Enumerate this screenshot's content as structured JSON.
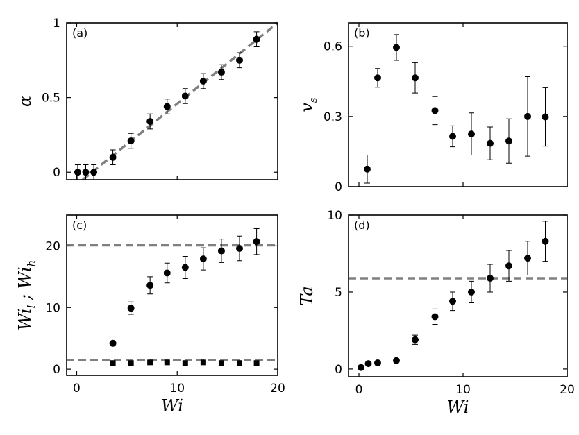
{
  "chart_data": [
    {
      "panel": "a",
      "type": "scatter",
      "label": "(a)",
      "xlabel": "",
      "ylabel": "α",
      "xlim": [
        -1,
        20
      ],
      "ylim": [
        -0.05,
        1
      ],
      "xticks": [
        0,
        10,
        20
      ],
      "xticklabels": [
        "0",
        "10",
        "20"
      ],
      "yticks": [
        0,
        0.5,
        1
      ],
      "yticklabels": [
        "0",
        "0.5",
        "1"
      ],
      "show_xticklabels": false,
      "series": [
        {
          "marker": "circle",
          "x": [
            0.1,
            0.9,
            1.7,
            3.6,
            5.4,
            7.3,
            9.0,
            10.8,
            12.6,
            14.4,
            16.2,
            17.9
          ],
          "y": [
            0.0,
            0.0,
            0.0,
            0.1,
            0.21,
            0.34,
            0.44,
            0.51,
            0.61,
            0.67,
            0.75,
            0.89
          ],
          "err": [
            0.05,
            0.05,
            0.05,
            0.05,
            0.05,
            0.05,
            0.05,
            0.05,
            0.05,
            0.05,
            0.05,
            0.05
          ]
        }
      ],
      "lines": [
        {
          "style": "dashed",
          "color": "#808080",
          "x": [
            0.6,
            20
          ],
          "y": [
            -0.05,
            1.0
          ]
        }
      ]
    },
    {
      "panel": "b",
      "type": "scatter",
      "label": "(b)",
      "xlabel": "",
      "ylabel": "v_s",
      "ylabel_main": "v",
      "ylabel_sub": "s",
      "xlim": [
        -1,
        20
      ],
      "ylim": [
        0,
        0.7
      ],
      "xticks": [
        0,
        10,
        20
      ],
      "xticklabels": [
        "0",
        "10",
        "20"
      ],
      "yticks": [
        0,
        0.3,
        0.6
      ],
      "yticklabels": [
        "0",
        "0.3",
        "0.6"
      ],
      "show_xticklabels": false,
      "series": [
        {
          "marker": "circle",
          "x": [
            0.8,
            1.8,
            3.6,
            5.4,
            7.3,
            9.0,
            10.8,
            12.6,
            14.4,
            16.2,
            17.9
          ],
          "y": [
            0.075,
            0.465,
            0.595,
            0.465,
            0.325,
            0.215,
            0.225,
            0.185,
            0.195,
            0.3,
            0.298
          ],
          "err": [
            0.06,
            0.04,
            0.055,
            0.065,
            0.06,
            0.045,
            0.09,
            0.07,
            0.095,
            0.17,
            0.125
          ]
        }
      ],
      "lines": []
    },
    {
      "panel": "c",
      "type": "scatter",
      "label": "(c)",
      "xlabel": "Wi",
      "ylabel": "Wi_l ; Wi_h",
      "xlim": [
        -1,
        20
      ],
      "ylim": [
        -1,
        25
      ],
      "xticks": [
        0,
        10,
        20
      ],
      "xticklabels": [
        "0",
        "10",
        "20"
      ],
      "yticks": [
        0,
        10,
        20
      ],
      "yticklabels": [
        "0",
        "10",
        "20"
      ],
      "show_xticklabels": true,
      "series": [
        {
          "name": "",
          "marker": "circle",
          "x": [
            3.6,
            5.4,
            7.3,
            9.0,
            10.8,
            12.6,
            14.4,
            16.2,
            17.9
          ],
          "y": [
            4.2,
            9.9,
            13.6,
            15.6,
            16.5,
            17.9,
            19.2,
            19.6,
            20.7
          ],
          "err": [
            0,
            1.0,
            1.4,
            1.6,
            1.8,
            1.8,
            1.9,
            2.0,
            2.1
          ]
        },
        {
          "name": "",
          "marker": "square",
          "x": [
            3.6,
            5.4,
            7.3,
            9.0,
            10.8,
            12.6,
            14.4,
            16.2,
            17.9
          ],
          "y": [
            1.0,
            1.0,
            1.1,
            1.1,
            1.0,
            1.1,
            1.0,
            1.0,
            1.0
          ],
          "err": [
            0,
            0,
            0,
            0,
            0,
            0,
            0,
            0,
            0
          ]
        }
      ],
      "lines": [
        {
          "style": "dashed",
          "color": "#808080",
          "x": [
            -1,
            20
          ],
          "y": [
            20.1,
            20.1
          ]
        },
        {
          "style": "dashed",
          "color": "#808080",
          "x": [
            -1,
            20
          ],
          "y": [
            1.5,
            1.5
          ]
        }
      ]
    },
    {
      "panel": "d",
      "type": "scatter",
      "label": "(d)",
      "xlabel": "Wi",
      "ylabel": "Ta",
      "xlim": [
        -1,
        20
      ],
      "ylim": [
        -0.5,
        10
      ],
      "xticks": [
        0,
        10,
        20
      ],
      "xticklabels": [
        "0",
        "10",
        "20"
      ],
      "yticks": [
        0,
        5,
        10
      ],
      "yticklabels": [
        "0",
        "5",
        "10"
      ],
      "show_xticklabels": true,
      "series": [
        {
          "marker": "circle",
          "x": [
            0.2,
            0.9,
            1.8,
            3.6,
            5.4,
            7.3,
            9.0,
            10.8,
            12.6,
            14.4,
            16.2,
            17.9
          ],
          "y": [
            0.1,
            0.35,
            0.4,
            0.55,
            1.9,
            3.4,
            4.4,
            5.0,
            5.9,
            6.7,
            7.2,
            8.3
          ],
          "err": [
            0,
            0,
            0,
            0,
            0.3,
            0.5,
            0.6,
            0.7,
            0.9,
            1.0,
            1.1,
            1.3
          ]
        }
      ],
      "lines": [
        {
          "style": "dashed",
          "color": "#808080",
          "x": [
            -1,
            20
          ],
          "y": [
            5.9,
            5.9
          ]
        }
      ]
    }
  ]
}
